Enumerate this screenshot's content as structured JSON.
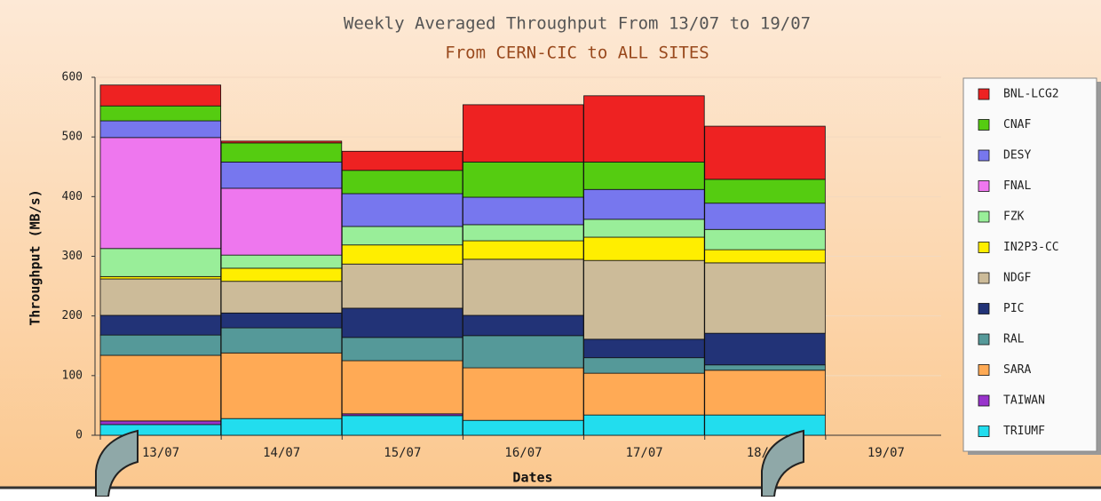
{
  "chart_data": {
    "type": "stacked_bar",
    "title": "Weekly Averaged Throughput From 13/07 to 19/07",
    "subtitle": "From CERN-CIC to ALL SITES",
    "y_label": "Throughput (MB/s)",
    "x_label": "Dates",
    "categories": [
      "13/07",
      "14/07",
      "15/07",
      "16/07",
      "17/07",
      "18/07",
      "19/07"
    ],
    "ylim": [
      0,
      600
    ],
    "yticks": [
      0,
      100,
      200,
      300,
      400,
      500,
      600
    ],
    "grid": true,
    "legend": "right",
    "series": [
      {
        "name": "BNL-LCG2",
        "color": "#ee2222",
        "values": [
          35,
          3,
          32,
          96,
          111,
          89,
          null
        ]
      },
      {
        "name": "CNAF",
        "color": "#55cc11",
        "values": [
          25,
          32,
          39,
          59,
          46,
          40,
          null
        ]
      },
      {
        "name": "DESY",
        "color": "#7777ee",
        "values": [
          28,
          44,
          55,
          46,
          50,
          44,
          null
        ]
      },
      {
        "name": "FNAL",
        "color": "#ee77ee",
        "values": [
          186,
          112,
          0,
          0,
          0,
          0,
          null
        ]
      },
      {
        "name": "FZK",
        "color": "#99ee99",
        "values": [
          47,
          22,
          31,
          27,
          30,
          34,
          null
        ]
      },
      {
        "name": "IN2P3-CC",
        "color": "#ffee00",
        "values": [
          4,
          22,
          32,
          31,
          39,
          22,
          null
        ]
      },
      {
        "name": "NDGF",
        "color": "#ccbb99",
        "values": [
          61,
          53,
          74,
          94,
          132,
          118,
          null
        ]
      },
      {
        "name": "PIC",
        "color": "#223377",
        "values": [
          33,
          25,
          49,
          34,
          31,
          53,
          null
        ]
      },
      {
        "name": "RAL",
        "color": "#559999",
        "values": [
          34,
          42,
          39,
          54,
          26,
          9,
          null
        ]
      },
      {
        "name": "SARA",
        "color": "#ffaa55",
        "values": [
          110,
          110,
          89,
          88,
          70,
          75,
          null
        ]
      },
      {
        "name": "TAIWAN",
        "color": "#9933cc",
        "values": [
          6,
          0,
          3,
          0,
          0,
          0,
          null
        ]
      },
      {
        "name": "TRIUMF",
        "color": "#22ddee",
        "values": [
          18,
          28,
          33,
          25,
          34,
          34,
          null
        ]
      }
    ]
  }
}
